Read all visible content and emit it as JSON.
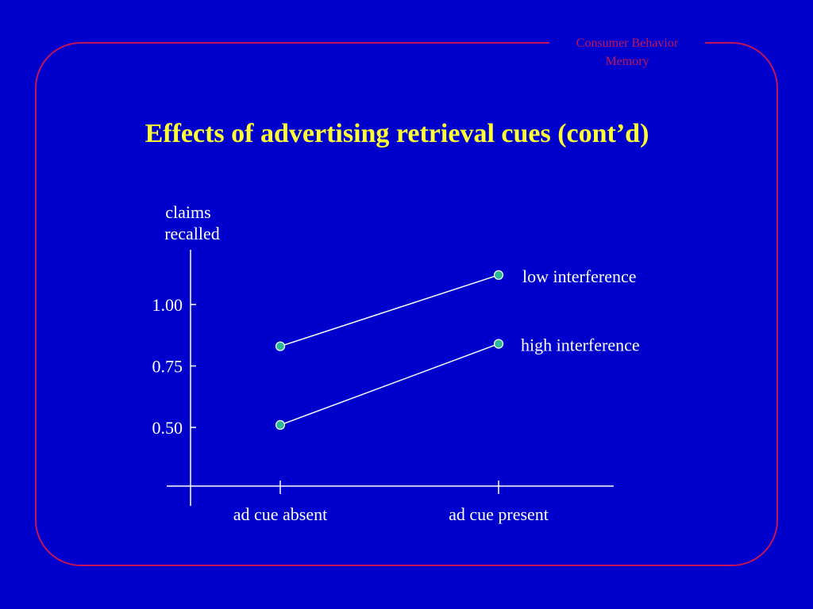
{
  "header": {
    "line1": "Consumer Behavior",
    "line2": "Memory"
  },
  "slide_title": "Effects of advertising retrieval cues (cont’d)",
  "colors": {
    "background": "#0000cc",
    "frame": "#c4145a",
    "title": "#ffff33",
    "axis": "#ffffff",
    "marker": "#2db89a"
  },
  "chart_data": {
    "type": "line",
    "title": "",
    "ylabel_lines": [
      "claims",
      "recalled"
    ],
    "xlabel": "",
    "categories": [
      "ad cue absent",
      "ad cue present"
    ],
    "y_ticks": [
      {
        "value": 0.5,
        "label": "0.50"
      },
      {
        "value": 0.75,
        "label": "0.75"
      },
      {
        "value": 1.0,
        "label": "1.00"
      }
    ],
    "ylim": [
      0.25,
      1.25
    ],
    "grid": false,
    "series": [
      {
        "name": "low interference",
        "values": [
          0.83,
          1.12
        ]
      },
      {
        "name": "high interference",
        "values": [
          0.51,
          0.84
        ]
      }
    ]
  }
}
